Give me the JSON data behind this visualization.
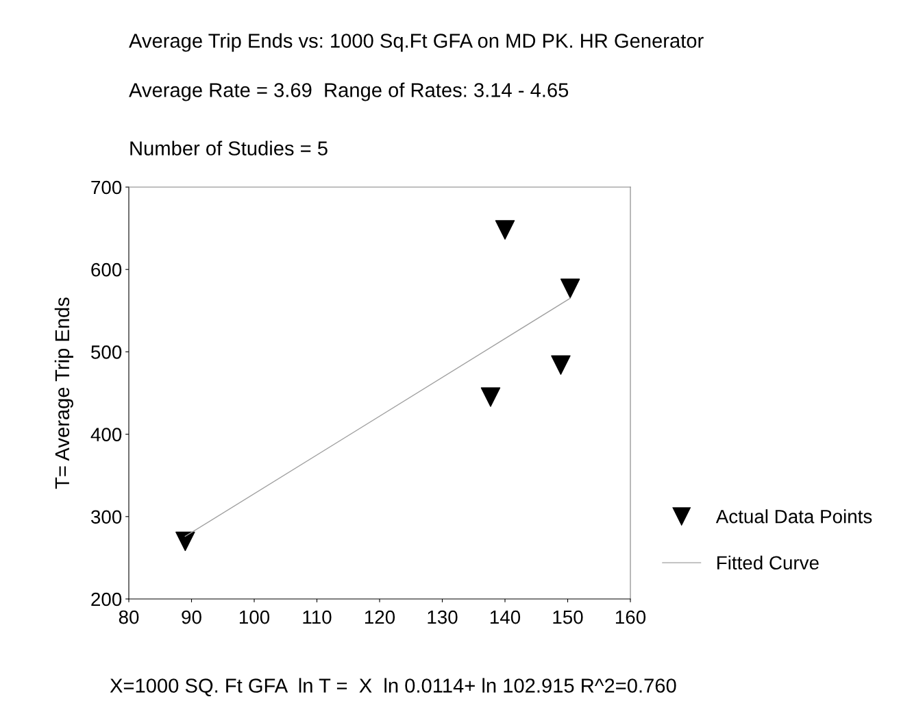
{
  "chart_data": {
    "type": "scatter",
    "title": "Average Trip Ends vs: 1000 Sq.Ft GFA on MD PK. HR Generator",
    "subtitle": "Average Rate = 3.69  Range of Rates: 3.14 - 4.65",
    "annotations": [
      "Number of Studies = 5",
      "X=1000 SQ. Ft GFA  ln T =  X  ln 0.0114+ ln 102.915 R^2=0.760"
    ],
    "ylabel": "T= Average Trip Ends",
    "series": [
      {
        "name": "Actual Data Points",
        "color": "#000000",
        "marker": "triangle",
        "x": [
          89,
          140,
          150.4,
          148.9,
          137.7
        ],
        "values": [
          270,
          648,
          577,
          484,
          445
        ]
      },
      {
        "name": "Fitted Curve",
        "type": "line",
        "color": "#a0a0a0",
        "marker": "none",
        "line_style": "solid",
        "x": [
          89,
          150.4
        ],
        "values": [
          276,
          565
        ]
      }
    ],
    "xlim": [
      80,
      160
    ],
    "xticks": [
      80,
      90,
      100,
      110,
      120,
      130,
      140,
      150,
      160
    ],
    "ylim": [
      200,
      700
    ],
    "yticks": [
      200,
      300,
      400,
      500,
      600,
      700
    ],
    "grid": false,
    "legend": "right"
  }
}
